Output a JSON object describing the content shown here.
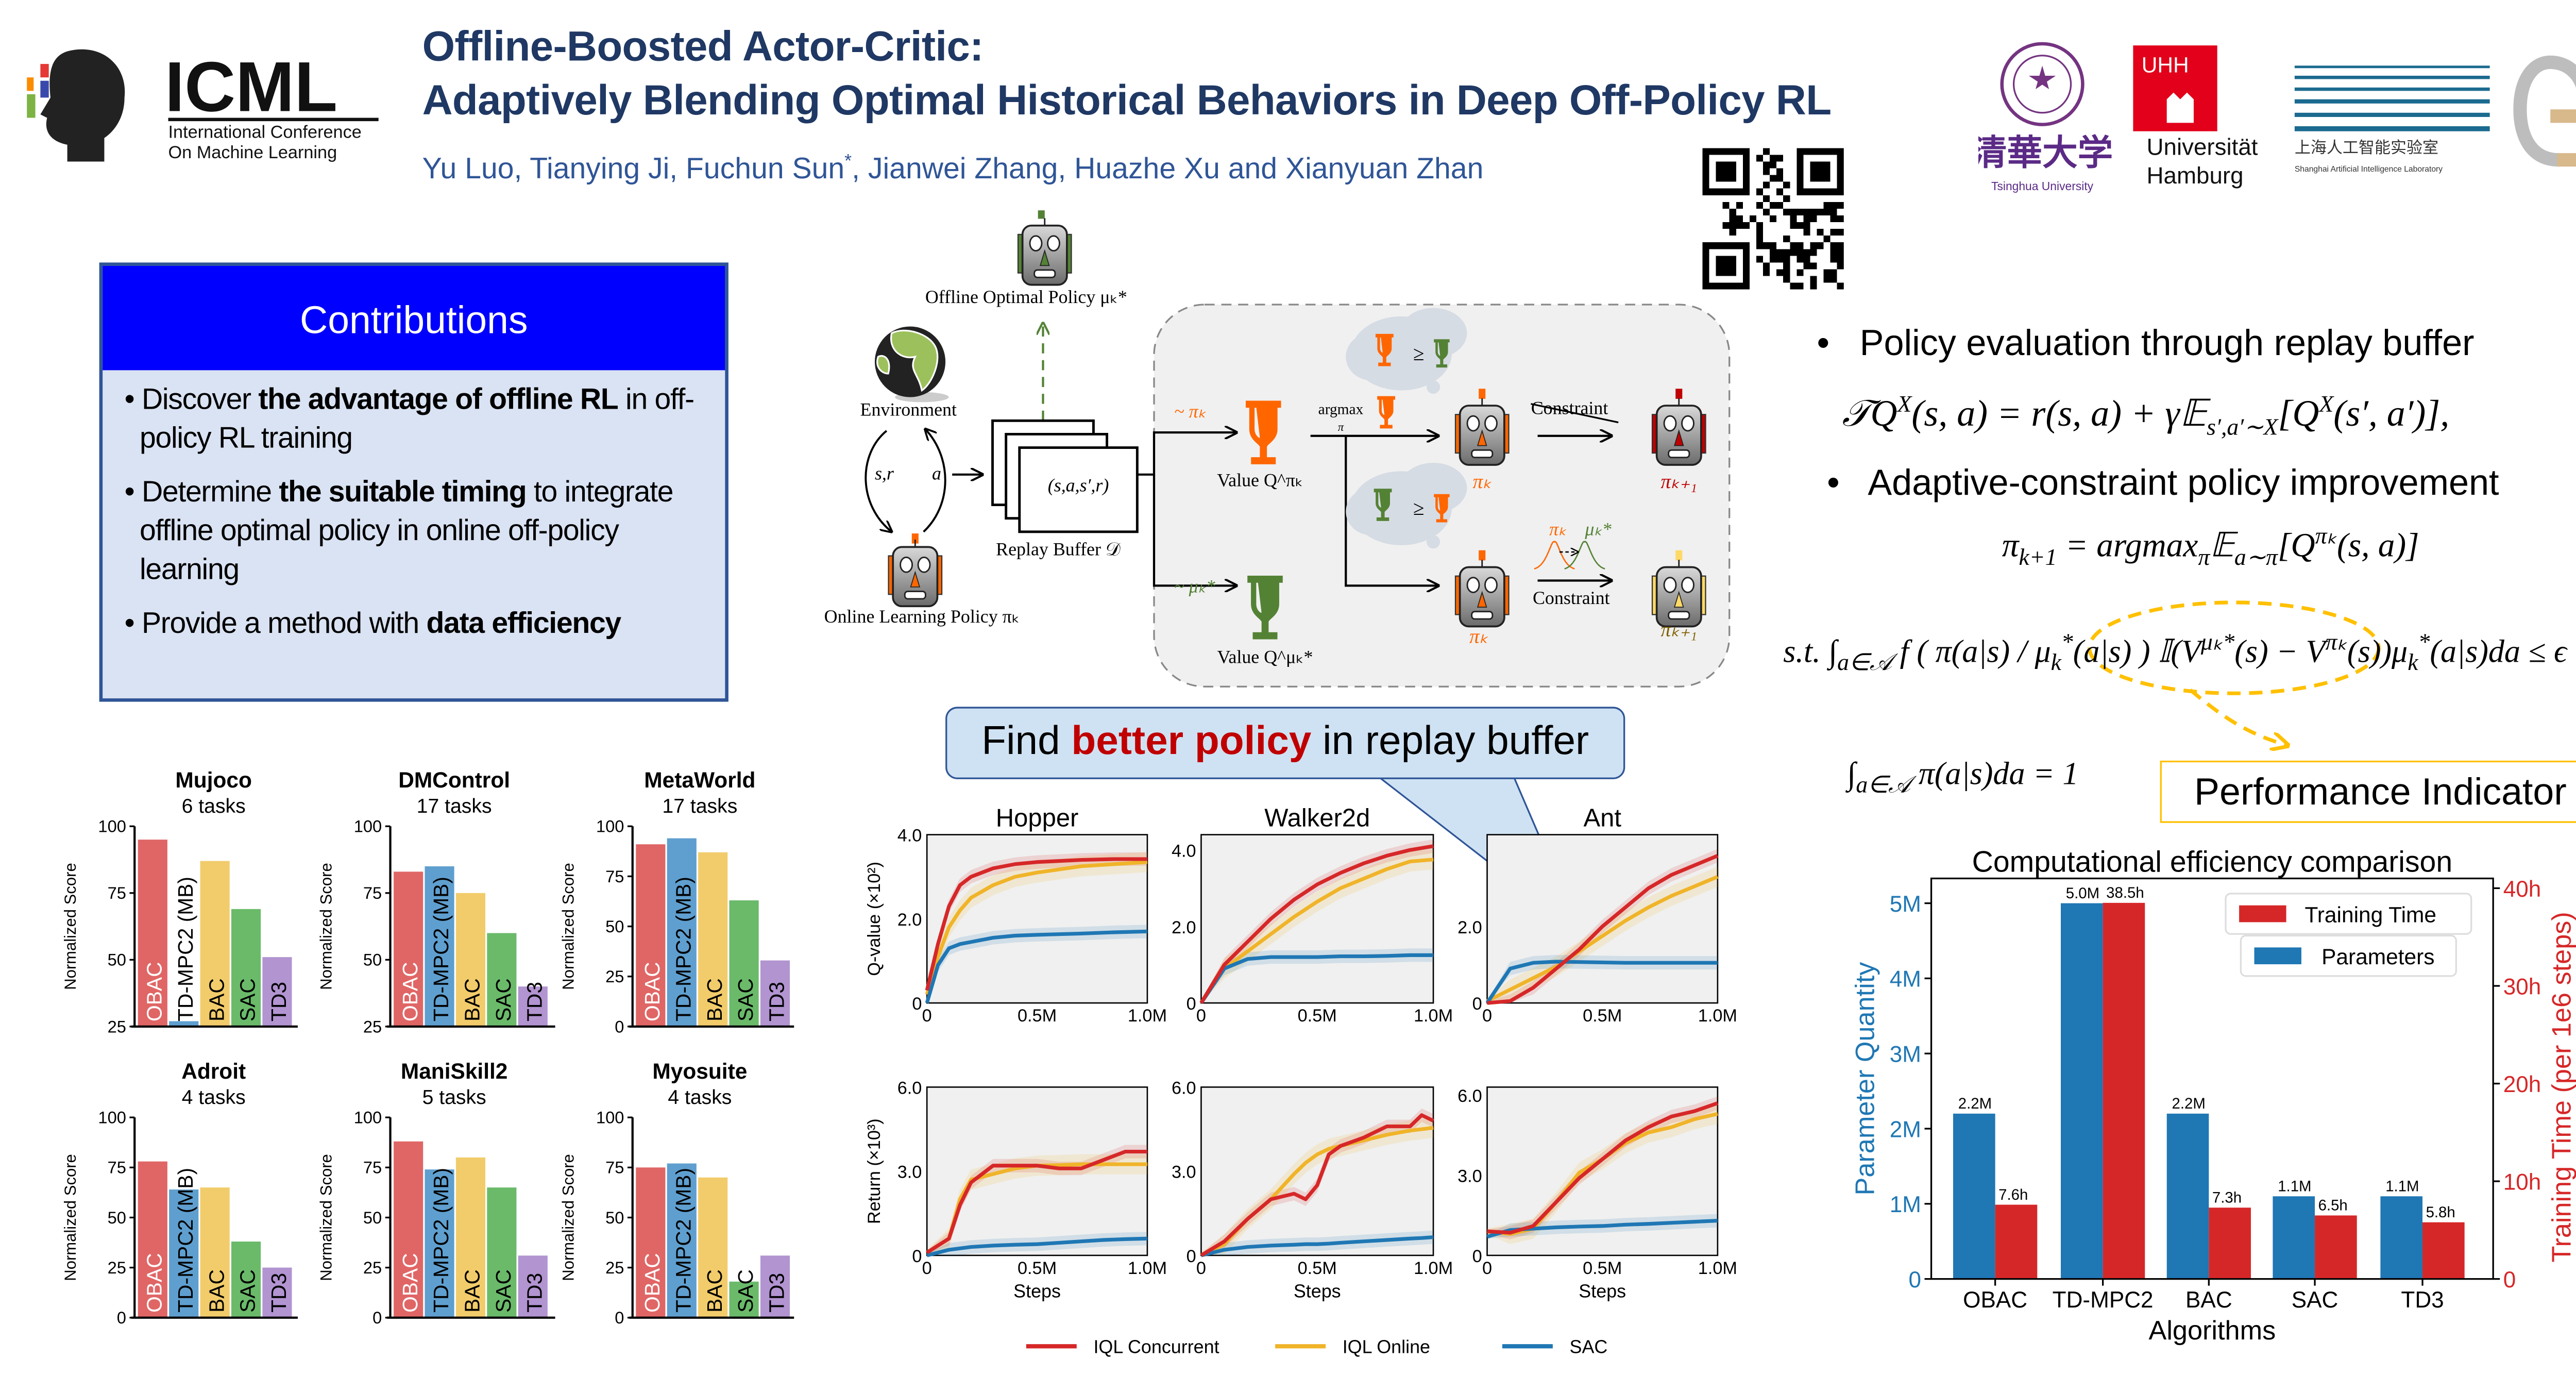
{
  "header": {
    "logo": {
      "name": "ICML",
      "line1": "International Conference",
      "line2": "On Machine Learning"
    },
    "title_line1": "Offline-Boosted Actor-Critic:",
    "title_line2": "Adaptively Blending Optimal Historical Behaviors in Deep Off-Policy RL",
    "authors_before": "Yu Luo, Tianying Ji, Fuchun Sun",
    "authors_mark": "*",
    "authors_after": ", Jianwei Zhang, Huazhe Xu and Xianyuan Zhan",
    "affiliations": [
      {
        "name": "清華大学",
        "sub": "Tsinghua University"
      },
      {
        "name": "Universität Hamburg",
        "mark": "UHH"
      },
      {
        "name": "上海人工智能实验室",
        "sub": "Shanghai Artificial Intelligence Laboratory"
      },
      {
        "name": "Q2 logo"
      }
    ],
    "qr_code": "qr-code"
  },
  "contributions": {
    "title": "Contributions",
    "items": [
      {
        "pre": "Discover ",
        "bold": "the advantage of offline RL",
        "post": " in off-policy RL training"
      },
      {
        "pre": "Determine ",
        "bold": "the suitable timing",
        "post": " to integrate offline optimal policy in online off-policy learning"
      },
      {
        "pre": "Provide a method with ",
        "bold": "data efficiency",
        "post": ""
      }
    ]
  },
  "diagram": {
    "offline_policy": "Offline Optimal Policy μₖ*",
    "environment": "Environment",
    "online_policy": "Online Learning Policy πₖ",
    "sr": "s,r",
    "a": "a",
    "transition": "(s,a,s′,r)",
    "replay_buffer": "Replay Buffer 𝒟",
    "sample_pi": "~ πₖ",
    "sample_mu": "~ μₖ*",
    "value_pi": "Value Q^πₖ",
    "value_mu": "Value Q^μₖ*",
    "argmax": "argmax",
    "argmax_sub": "π",
    "constraint_struck": "Constraint",
    "constraint": "Constraint",
    "ge": "≥",
    "pi_k": "πₖ",
    "pi_k1": "πₖ₊₁",
    "mu_k": "μₖ*",
    "colors": {
      "orange": "#ff6600",
      "green": "#548235",
      "red": "#c00000",
      "yellow": "#ffd966"
    }
  },
  "method": {
    "bullet1": "Policy evaluation through replay buffer",
    "eq1": [
      [
        "𝒯Q",
        ""
      ],
      [
        "X",
        "sup"
      ],
      [
        "(s, a) = r(s, a) + γ𝔼",
        ""
      ],
      [
        "s′,a′∼X",
        "sub"
      ],
      [
        "[Q",
        ""
      ],
      [
        "X",
        "sup"
      ],
      [
        "(s′, a′)],",
        ""
      ]
    ],
    "bullet2": "Adaptive-constraint policy improvement",
    "eq2": [
      [
        "π",
        ""
      ],
      [
        "k+1",
        "sub"
      ],
      [
        " = argmax",
        ""
      ],
      [
        "π",
        "sub"
      ],
      [
        "𝔼",
        ""
      ],
      [
        "a∼π",
        "sub"
      ],
      [
        "[Q",
        ""
      ],
      [
        "πₖ",
        "sup"
      ],
      [
        "(s, a)]",
        ""
      ]
    ],
    "eq3": [
      [
        "s.t. ∫",
        ""
      ],
      [
        "a∈𝒜",
        "sub"
      ],
      [
        " f ( π(a|s) / μ",
        ""
      ],
      [
        "k",
        "sub"
      ],
      [
        "*",
        "sup"
      ],
      [
        "(a|s) ) 𝕀(V",
        ""
      ],
      [
        "μₖ*",
        "sup"
      ],
      [
        "(s) − V",
        ""
      ],
      [
        "πₖ",
        "sup"
      ],
      [
        "(s))μ",
        ""
      ],
      [
        "k",
        "sub"
      ],
      [
        "*",
        "sup"
      ],
      [
        "(a|s)da ≤ ϵ",
        ""
      ]
    ],
    "eq4": [
      [
        "∫",
        ""
      ],
      [
        "a∈𝒜",
        "sub"
      ],
      [
        " π(a|s)da = 1",
        ""
      ]
    ],
    "performance_indicator": "Performance Indicator",
    "highlight_color": "#ffc000"
  },
  "callout": {
    "pre": "Find ",
    "bold": "better policy",
    "post": " in replay buffer"
  },
  "chart_data": [
    {
      "type": "bar",
      "group": "benchmark-scores",
      "panels": [
        {
          "title": "Mujoco",
          "subtitle": "6 tasks",
          "ylabel": "Normalized Score",
          "ylim": [
            25,
            100
          ],
          "yticks": [
            25,
            50,
            75,
            100
          ],
          "ytick_labels": [
            "25",
            "50",
            "75",
            "100"
          ],
          "categories": [
            "OBAC",
            "TD-MPC2 (MB)",
            "BAC",
            "SAC",
            "TD3"
          ],
          "values": [
            95,
            27,
            87,
            69,
            51
          ]
        },
        {
          "title": "DMControl",
          "subtitle": "17 tasks",
          "ylabel": "Normalized Score",
          "ylim": [
            25,
            100
          ],
          "yticks": [
            25,
            50,
            75,
            100
          ],
          "ytick_labels": [
            "25",
            "50",
            "75",
            "100"
          ],
          "categories": [
            "OBAC",
            "TD-MPC2 (MB)",
            "BAC",
            "SAC",
            "TD3"
          ],
          "values": [
            83,
            85,
            75,
            60,
            40
          ]
        },
        {
          "title": "MetaWorld",
          "subtitle": "17 tasks",
          "ylabel": "Normalized Score",
          "ylim": [
            0,
            100
          ],
          "yticks": [
            0,
            25,
            50,
            75,
            100
          ],
          "ytick_labels": [
            "0",
            "25",
            "50",
            "75",
            "100"
          ],
          "categories": [
            "OBAC",
            "TD-MPC2 (MB)",
            "BAC",
            "SAC",
            "TD3"
          ],
          "values": [
            91,
            94,
            87,
            63,
            33
          ]
        },
        {
          "title": "Adroit",
          "subtitle": "4 tasks",
          "ylabel": "Normalized Score",
          "ylim": [
            0,
            100
          ],
          "yticks": [
            0,
            25,
            50,
            75,
            100
          ],
          "ytick_labels": [
            "0",
            "25",
            "50",
            "75",
            "100"
          ],
          "categories": [
            "OBAC",
            "TD-MPC2 (MB)",
            "BAC",
            "SAC",
            "TD3"
          ],
          "values": [
            78,
            64,
            65,
            38,
            25
          ]
        },
        {
          "title": "ManiSkill2",
          "subtitle": "5 tasks",
          "ylabel": "Normalized Score",
          "ylim": [
            0,
            100
          ],
          "yticks": [
            0,
            25,
            50,
            75,
            100
          ],
          "ytick_labels": [
            "0",
            "25",
            "50",
            "75",
            "100"
          ],
          "categories": [
            "OBAC",
            "TD-MPC2 (MB)",
            "BAC",
            "SAC",
            "TD3"
          ],
          "values": [
            88,
            74,
            80,
            65,
            31
          ]
        },
        {
          "title": "Myosuite",
          "subtitle": "4 tasks",
          "ylabel": "Normalized Score",
          "ylim": [
            0,
            100
          ],
          "yticks": [
            0,
            25,
            50,
            75,
            100
          ],
          "ytick_labels": [
            "0",
            "25",
            "50",
            "75",
            "100"
          ],
          "categories": [
            "OBAC",
            "TD-MPC2 (MB)",
            "BAC",
            "SAC",
            "TD3"
          ],
          "values": [
            75,
            77,
            70,
            18,
            31
          ]
        }
      ],
      "colors": [
        "#e06666",
        "#5f9fcf",
        "#f2cc6b",
        "#6aba6a",
        "#b294d1"
      ]
    },
    {
      "type": "line",
      "group": "q-value-and-return",
      "legend": [
        {
          "name": "IQL Concurrent",
          "color": "#d62728"
        },
        {
          "name": "IQL Online",
          "color": "#f0b429"
        },
        {
          "name": "SAC",
          "color": "#1f77b4"
        }
      ],
      "legend_position": "bottom",
      "xlim": [
        0,
        1.0
      ],
      "xticks": [
        0,
        0.5,
        1.0
      ],
      "xtick_labels": [
        "0",
        "0.5M",
        "1.0M"
      ],
      "xlabel": "Steps",
      "panels": [
        {
          "title": "Hopper",
          "ylabel": "Q-value (×10²)",
          "ylim": [
            0,
            4.0
          ],
          "yticks": [
            0,
            2,
            4
          ],
          "ytick_labels": [
            "0",
            "2.0",
            "4.0"
          ],
          "x": [
            0,
            0.05,
            0.1,
            0.15,
            0.2,
            0.3,
            0.4,
            0.5,
            0.7,
            0.85,
            1.0
          ],
          "series": [
            [
              0.3,
              1.4,
              2.3,
              2.8,
              3.0,
              3.2,
              3.3,
              3.35,
              3.4,
              3.42,
              3.42
            ],
            [
              0.2,
              1.1,
              1.8,
              2.2,
              2.5,
              2.8,
              3.0,
              3.1,
              3.25,
              3.3,
              3.35
            ],
            [
              0,
              0.9,
              1.3,
              1.4,
              1.45,
              1.55,
              1.6,
              1.62,
              1.65,
              1.68,
              1.7
            ]
          ]
        },
        {
          "title": "Walker2d",
          "ylabel": "",
          "ylim": [
            0,
            4.4
          ],
          "yticks": [
            0,
            2,
            4
          ],
          "ytick_labels": [
            "0",
            "2.0",
            "4.0"
          ],
          "x": [
            0,
            0.1,
            0.2,
            0.3,
            0.4,
            0.5,
            0.6,
            0.7,
            0.8,
            0.9,
            1.0
          ],
          "series": [
            [
              0,
              1.0,
              1.6,
              2.2,
              2.7,
              3.1,
              3.4,
              3.65,
              3.85,
              4.0,
              4.1
            ],
            [
              0,
              0.9,
              1.35,
              1.8,
              2.25,
              2.65,
              3.0,
              3.25,
              3.5,
              3.7,
              3.75
            ],
            [
              0,
              0.9,
              1.15,
              1.2,
              1.2,
              1.2,
              1.22,
              1.22,
              1.23,
              1.25,
              1.25
            ]
          ]
        },
        {
          "title": "Ant",
          "ylabel": "",
          "ylim": [
            0,
            4.4
          ],
          "yticks": [
            0,
            2
          ],
          "ytick_labels": [
            "0",
            "2.0"
          ],
          "x": [
            0,
            0.1,
            0.2,
            0.3,
            0.4,
            0.5,
            0.6,
            0.7,
            0.8,
            0.9,
            1.0
          ],
          "series": [
            [
              0,
              0.05,
              0.4,
              0.9,
              1.4,
              2.0,
              2.5,
              3.0,
              3.35,
              3.6,
              3.85
            ],
            [
              0.05,
              0.35,
              0.65,
              0.95,
              1.35,
              1.75,
              2.15,
              2.5,
              2.8,
              3.05,
              3.3
            ],
            [
              0,
              0.9,
              1.05,
              1.08,
              1.07,
              1.06,
              1.05,
              1.05,
              1.05,
              1.05,
              1.05
            ]
          ]
        },
        {
          "title": "",
          "ylabel": "Return (×10³)",
          "ylim": [
            0,
            6.0
          ],
          "yticks": [
            0,
            3,
            6
          ],
          "ytick_labels": [
            "0",
            "3.0",
            "6.0"
          ],
          "x": [
            0,
            0.1,
            0.15,
            0.2,
            0.3,
            0.4,
            0.5,
            0.6,
            0.7,
            0.8,
            0.9,
            1.0
          ],
          "series": [
            [
              0.1,
              0.6,
              1.8,
              2.6,
              3.2,
              3.2,
              3.2,
              3.1,
              3.1,
              3.4,
              3.7,
              3.7
            ],
            [
              0.1,
              0.6,
              2.0,
              2.7,
              2.9,
              3.1,
              3.2,
              3.22,
              3.25,
              3.25,
              3.25,
              3.25
            ],
            [
              0,
              0.2,
              0.25,
              0.3,
              0.35,
              0.38,
              0.4,
              0.45,
              0.5,
              0.55,
              0.58,
              0.6
            ]
          ]
        },
        {
          "title": "",
          "ylabel": "",
          "ylim": [
            0,
            6.0
          ],
          "yticks": [
            0,
            3,
            6
          ],
          "ytick_labels": [
            "0",
            "3.0",
            "6.0"
          ],
          "x": [
            0,
            0.1,
            0.2,
            0.3,
            0.4,
            0.45,
            0.5,
            0.55,
            0.6,
            0.7,
            0.8,
            0.9,
            0.95,
            1.0
          ],
          "series": [
            [
              0,
              0.5,
              1.3,
              2.0,
              2.2,
              2.0,
              2.5,
              3.6,
              3.9,
              4.2,
              4.6,
              4.6,
              5.0,
              4.8
            ],
            [
              0,
              0.4,
              1.3,
              2.0,
              2.9,
              3.3,
              3.6,
              3.8,
              3.9,
              4.1,
              4.3,
              4.45,
              4.5,
              4.55
            ],
            [
              0,
              0.2,
              0.3,
              0.35,
              0.38,
              0.4,
              0.4,
              0.42,
              0.45,
              0.5,
              0.55,
              0.6,
              0.62,
              0.65
            ]
          ]
        },
        {
          "title": "",
          "ylabel": "",
          "ylim": [
            0,
            6.3
          ],
          "yticks": [
            0,
            3,
            6
          ],
          "ytick_labels": [
            "0",
            "3.0",
            "6.0"
          ],
          "x": [
            0,
            0.1,
            0.2,
            0.3,
            0.4,
            0.5,
            0.6,
            0.7,
            0.8,
            0.9,
            1.0
          ],
          "series": [
            [
              0.9,
              0.85,
              1.1,
              2.0,
              2.9,
              3.6,
              4.3,
              4.8,
              5.2,
              5.4,
              5.7
            ],
            [
              0.9,
              0.8,
              1.0,
              2.0,
              3.1,
              3.6,
              4.2,
              4.6,
              4.8,
              5.1,
              5.3
            ],
            [
              0.7,
              0.95,
              1.0,
              1.05,
              1.08,
              1.1,
              1.15,
              1.18,
              1.22,
              1.26,
              1.3
            ]
          ]
        }
      ]
    },
    {
      "type": "bar",
      "group": "computational-efficiency",
      "title": "Computational efficiency comparison",
      "xlabel": "Algorithms",
      "categories": [
        "OBAC",
        "TD-MPC2",
        "BAC",
        "SAC",
        "TD3"
      ],
      "series": [
        {
          "name": "Parameters",
          "axis": "left",
          "color": "#1f77b4",
          "values": [
            2.2,
            5.0,
            2.2,
            1.1,
            1.1
          ],
          "labels": [
            "2.2M",
            "5.0M",
            "2.2M",
            "1.1M",
            "1.1M"
          ]
        },
        {
          "name": "Training Time",
          "axis": "right",
          "color": "#d62728",
          "values": [
            7.6,
            38.5,
            7.3,
            6.5,
            5.8
          ],
          "labels": [
            "7.6h",
            "38.5h",
            "7.3h",
            "6.5h",
            "5.8h"
          ]
        }
      ],
      "left_axis": {
        "label": "Parameter Quantity",
        "ylim": [
          0,
          5.33
        ],
        "ticks": [
          0,
          1,
          2,
          3,
          4,
          5
        ],
        "tick_labels": [
          "0",
          "1M",
          "2M",
          "3M",
          "4M",
          "5M"
        ],
        "color": "#1f77b4"
      },
      "right_axis": {
        "label": "Training Time (per 1e6 steps)",
        "ylim": [
          0,
          41
        ],
        "ticks": [
          0,
          10,
          20,
          30,
          40
        ],
        "tick_labels": [
          "0",
          "10h",
          "20h",
          "30h",
          "40h"
        ],
        "color": "#d62728"
      },
      "legend_position": "top-right"
    }
  ]
}
